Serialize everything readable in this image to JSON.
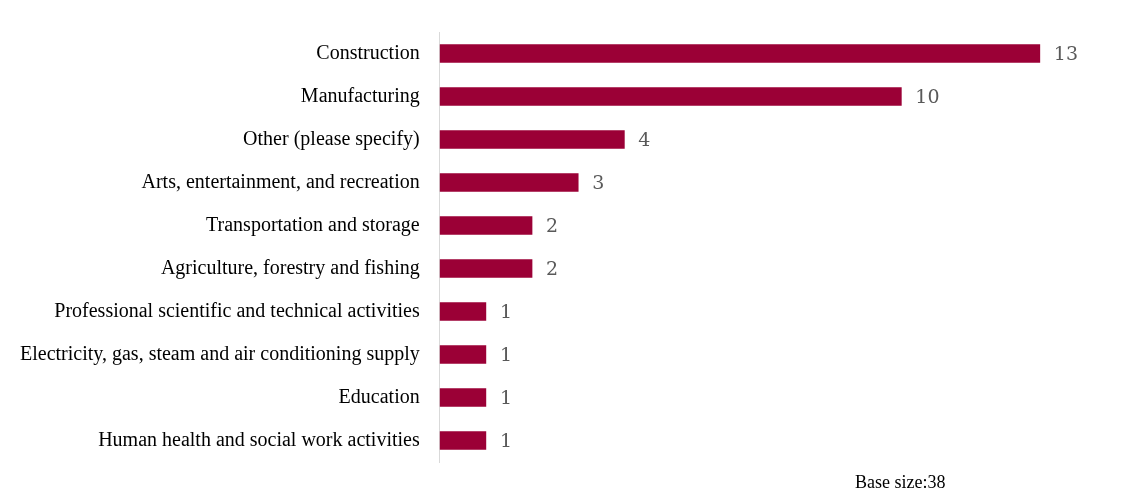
{
  "chart_data": {
    "type": "bar",
    "orientation": "horizontal",
    "categories": [
      "Construction",
      "Manufacturing",
      "Other (please specify)",
      "Arts, entertainment, and recreation",
      "Transportation and storage",
      "Agriculture, forestry and fishing",
      "Professional scientific and technical activities",
      "Electricity, gas, steam and air conditioning supply",
      "Education",
      "Human health and social work activities"
    ],
    "values": [
      13,
      10,
      4,
      3,
      2,
      2,
      1,
      1,
      1,
      1
    ],
    "color": "#9b0036",
    "data_labels": true,
    "tick_labels": "y",
    "grid": false,
    "legend": false,
    "annotations": [
      "Base size:38"
    ]
  }
}
